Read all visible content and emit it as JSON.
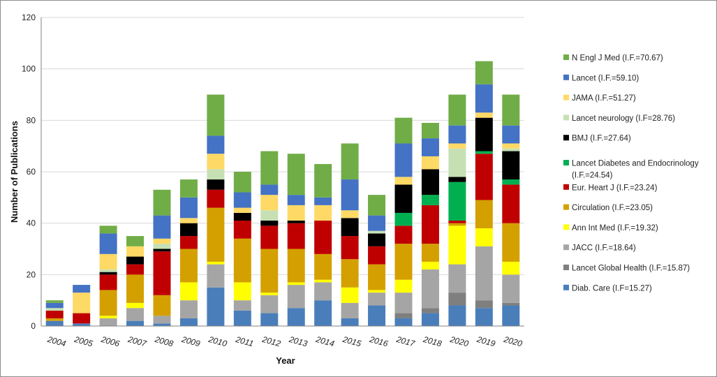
{
  "chart_data": {
    "type": "bar",
    "stacked": true,
    "title": "",
    "xlabel": "Year",
    "ylabel": "Number of Publications",
    "ylim": [
      0,
      120
    ],
    "yticks": [
      0,
      20,
      40,
      60,
      80,
      100,
      120
    ],
    "grid": true,
    "legend_position": "right",
    "categories": [
      "2004",
      "2005",
      "2006",
      "2007",
      "2008",
      "2009",
      "2010",
      "2011",
      "2012",
      "2013",
      "2014",
      "2015",
      "2016",
      "2017",
      "2018",
      "2020",
      "2019",
      "2020"
    ],
    "series": [
      {
        "name": "Diab. Care (I.F=15.27)",
        "legend_lines": [
          "Diab. Care (I.F=15.27)"
        ],
        "color": "#4a7ebb",
        "values": [
          2,
          1,
          0,
          2,
          1,
          3,
          15,
          6,
          5,
          7,
          10,
          3,
          8,
          3,
          5,
          8,
          7,
          8
        ]
      },
      {
        "name": "Lancet Global Health (I.F.=15.87)",
        "legend_lines": [
          "Lancet Global Health (I.F.=15.87)"
        ],
        "color": "#7f7f7f",
        "values": [
          0,
          0,
          0,
          0,
          0,
          0,
          0,
          0,
          0,
          0,
          0,
          0,
          0,
          2,
          2,
          5,
          3,
          1
        ]
      },
      {
        "name": "JACC (I.F.=18.64)",
        "legend_lines": [
          "JACC (I.F.=18.64)"
        ],
        "color": "#a5a5a5",
        "values": [
          0,
          0,
          3,
          5,
          3,
          7,
          9,
          4,
          7,
          9,
          7,
          6,
          5,
          8,
          15,
          11,
          21,
          11
        ]
      },
      {
        "name": "Ann Int Med (I.F.=19.32)",
        "legend_lines": [
          "Ann Int Med (I.F.=19.32)"
        ],
        "color": "#ffff00",
        "values": [
          0,
          0,
          1,
          2,
          0,
          7,
          1,
          7,
          1,
          1,
          1,
          6,
          1,
          5,
          3,
          15,
          7,
          5
        ]
      },
      {
        "name": "Circulation (I.F.=23.05)",
        "legend_lines": [
          "Circulation (I.F.=23.05)"
        ],
        "color": "#d4a000",
        "values": [
          1,
          0,
          10,
          11,
          8,
          13,
          21,
          17,
          17,
          13,
          10,
          11,
          10,
          14,
          7,
          1,
          11,
          15
        ]
      },
      {
        "name": "Eur. Heart J (I.F.=23.24)",
        "legend_lines": [
          "Eur. Heart J (I.F.=23.24)"
        ],
        "color": "#c00000",
        "values": [
          3,
          4,
          6,
          4,
          17,
          5,
          7,
          7,
          9,
          10,
          13,
          9,
          7,
          7,
          15,
          1,
          18,
          15
        ]
      },
      {
        "name": "Lancet Diabetes and Endocrinology (I.F.=24.54)",
        "legend_lines": [
          "Lancet Diabetes and Endocrinology",
          "(I.F.=24.54)"
        ],
        "color": "#00b050",
        "values": [
          0,
          0,
          0,
          0,
          0,
          0,
          0,
          0,
          0,
          0,
          0,
          0,
          0,
          5,
          4,
          15,
          1,
          2
        ]
      },
      {
        "name": "BMJ (I.F.=27.64)",
        "legend_lines": [
          "BMJ (I.F.=27.64)"
        ],
        "color": "#000000",
        "values": [
          0,
          0,
          1,
          3,
          1,
          5,
          4,
          3,
          2,
          1,
          0,
          7,
          5,
          11,
          10,
          2,
          13,
          11
        ]
      },
      {
        "name": "Lancet neurology (I.F=28.76)",
        "legend_lines": [
          "Lancet neurology (I.F=28.76)"
        ],
        "color": "#c6e0b4",
        "values": [
          1,
          0,
          1,
          0,
          2,
          0,
          4,
          0,
          4,
          0,
          0,
          0,
          1,
          0,
          0,
          11,
          0,
          1
        ]
      },
      {
        "name": "JAMA (I.F.=51.27)",
        "legend_lines": [
          "JAMA (I.F.=51.27)"
        ],
        "color": "#ffd966",
        "values": [
          0,
          8,
          6,
          4,
          2,
          2,
          6,
          2,
          6,
          6,
          6,
          3,
          0,
          3,
          5,
          2,
          2,
          2
        ]
      },
      {
        "name": "Lancet (I.F.=59.10)",
        "legend_lines": [
          "Lancet (I.F.=59.10)"
        ],
        "color": "#4472c4",
        "values": [
          2,
          3,
          8,
          0,
          9,
          8,
          7,
          6,
          4,
          4,
          3,
          12,
          6,
          13,
          7,
          7,
          11,
          7
        ]
      },
      {
        "name": "N Engl J Med (I.F.=70.67)",
        "legend_lines": [
          "N Engl J Med (I.F.=70.67)"
        ],
        "color": "#70ad47",
        "values": [
          1,
          0,
          3,
          4,
          10,
          7,
          16,
          8,
          13,
          16,
          13,
          14,
          8,
          10,
          6,
          12,
          9,
          12
        ]
      }
    ]
  }
}
